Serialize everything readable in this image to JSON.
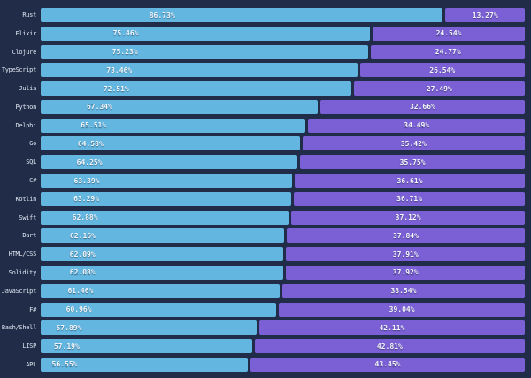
{
  "chart_data": {
    "type": "bar",
    "orientation": "horizontal",
    "stacked": true,
    "categories": [
      "Rust",
      "Elixir",
      "Clojure",
      "TypeScript",
      "Julia",
      "Python",
      "Delphi",
      "Go",
      "SQL",
      "C#",
      "Kotlin",
      "Swift",
      "Dart",
      "HTML/CSS",
      "Solidity",
      "JavaScript",
      "F#",
      "Bash/Shell",
      "LISP",
      "APL"
    ],
    "series": [
      {
        "name": "blue",
        "color": "#62b6e0",
        "values": [
          86.73,
          75.46,
          75.23,
          73.46,
          72.51,
          67.34,
          65.51,
          64.58,
          64.25,
          63.39,
          63.29,
          62.88,
          62.16,
          62.09,
          62.08,
          61.46,
          60.96,
          57.89,
          57.19,
          56.55
        ]
      },
      {
        "name": "purple",
        "color": "#7a60d4",
        "values": [
          13.27,
          24.54,
          24.77,
          26.54,
          27.49,
          32.66,
          34.49,
          35.42,
          35.75,
          36.61,
          36.71,
          37.12,
          37.84,
          37.91,
          37.92,
          38.54,
          39.04,
          42.11,
          42.81,
          43.45
        ]
      }
    ],
    "value_label_format": "two_decimals_percent",
    "value_labels_shown": true,
    "xlim": [
      0,
      100
    ],
    "grid": false,
    "legend": false,
    "axis_labels_shown": false,
    "background_color": "#202c48",
    "label_color": "#dfe6f1",
    "value_text_color": "#f3f6fb"
  }
}
